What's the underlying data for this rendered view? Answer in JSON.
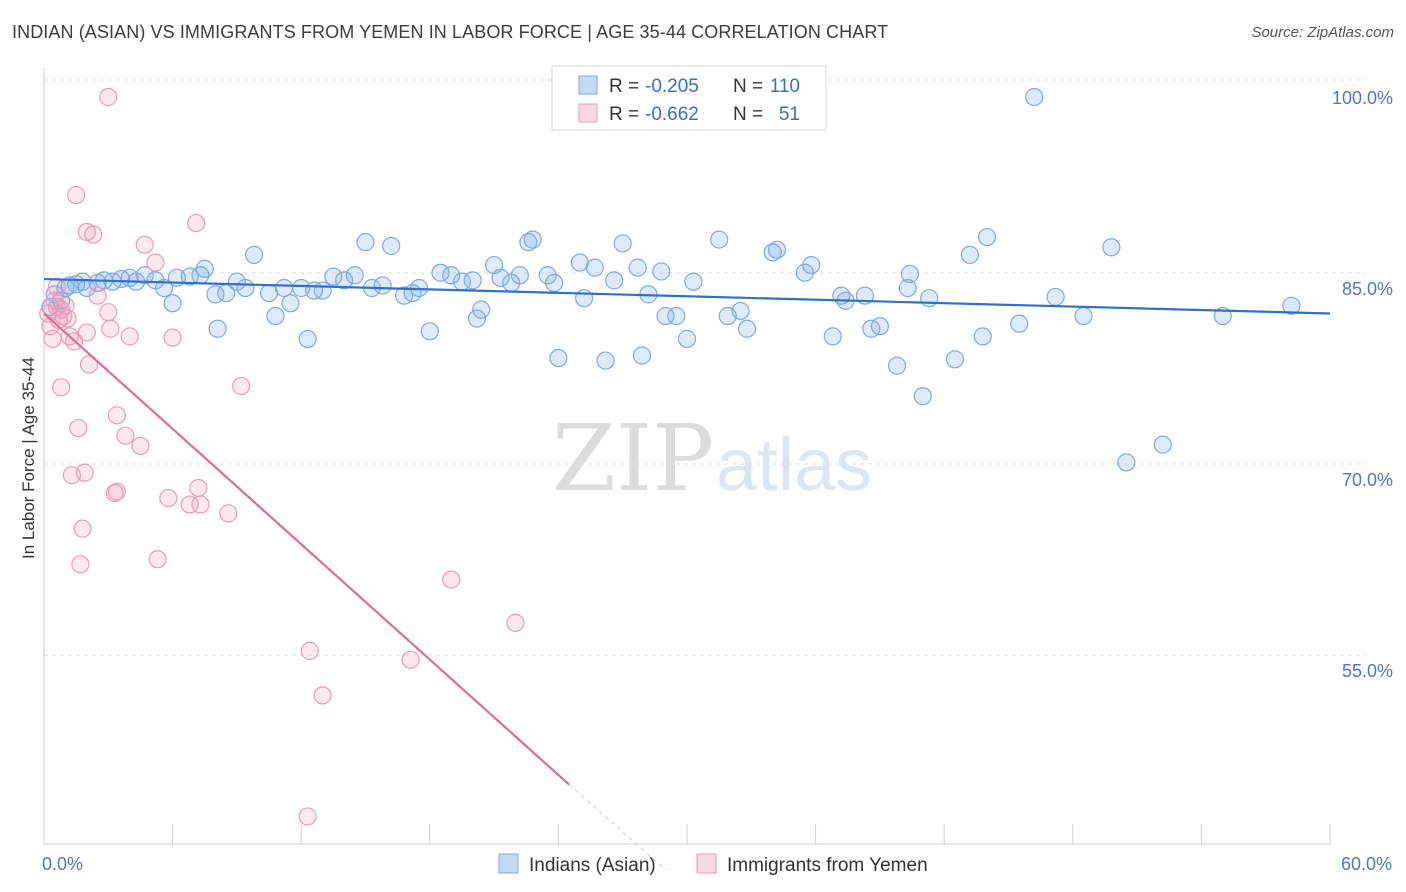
{
  "title": "INDIAN (ASIAN) VS IMMIGRANTS FROM YEMEN IN LABOR FORCE | AGE 35-44 CORRELATION CHART",
  "source": "Source: ZipAtlas.com",
  "watermark": {
    "zip": "ZIP",
    "atlas": "atlas"
  },
  "legend": {
    "r_label": "R =",
    "n_label": "N =",
    "rows": [
      {
        "r": "-0.205",
        "n": "110"
      },
      {
        "r": "-0.662",
        "n": "51"
      }
    ]
  },
  "chart_data": {
    "type": "scatter",
    "xlabel": "",
    "ylabel": "In Labor Force | Age 35-44",
    "xlim": [
      0,
      60
    ],
    "ylim": [
      40,
      101
    ],
    "x_tick_labels": {
      "left": "0.0%",
      "right": "60.0%"
    },
    "y_ticks": [
      {
        "value": 100,
        "label": "100.0%"
      },
      {
        "value": 85,
        "label": "85.0%"
      },
      {
        "value": 70,
        "label": "70.0%"
      },
      {
        "value": 55,
        "label": "55.0%"
      }
    ],
    "grid": "horizontal dashed",
    "series": [
      {
        "name": "Indians (Asian)",
        "color": "#7aaae6",
        "fill": "rgba(122,170,230,0.25)",
        "trend": {
          "x": [
            0,
            60
          ],
          "y": [
            85.7,
            83.0
          ],
          "color": "#2f6fd0"
        },
        "points": [
          [
            0.3,
            83.5
          ],
          [
            0.5,
            84.5
          ],
          [
            0.8,
            84.0
          ],
          [
            1.0,
            85.0
          ],
          [
            1.2,
            85.2
          ],
          [
            1.5,
            85.3
          ],
          [
            1.8,
            85.5
          ],
          [
            2.0,
            85.0
          ],
          [
            2.5,
            85.4
          ],
          [
            2.8,
            85.6
          ],
          [
            3.2,
            85.5
          ],
          [
            3.6,
            85.7
          ],
          [
            4.0,
            85.8
          ],
          [
            4.3,
            85.5
          ],
          [
            4.7,
            86.0
          ],
          [
            5.2,
            85.6
          ],
          [
            5.6,
            85.0
          ],
          [
            6.0,
            83.8
          ],
          [
            6.2,
            85.8
          ],
          [
            6.8,
            85.9
          ],
          [
            7.3,
            86.0
          ],
          [
            7.5,
            86.5
          ],
          [
            8.0,
            84.5
          ],
          [
            8.1,
            81.8
          ],
          [
            8.5,
            84.6
          ],
          [
            9.0,
            85.5
          ],
          [
            9.4,
            85.0
          ],
          [
            9.8,
            87.6
          ],
          [
            10.5,
            84.6
          ],
          [
            10.8,
            82.8
          ],
          [
            11.2,
            85.0
          ],
          [
            11.5,
            83.8
          ],
          [
            12.0,
            85.0
          ],
          [
            12.3,
            81.0
          ],
          [
            12.6,
            84.8
          ],
          [
            13.0,
            84.8
          ],
          [
            13.5,
            85.9
          ],
          [
            14.0,
            85.6
          ],
          [
            14.5,
            86.0
          ],
          [
            15.0,
            88.6
          ],
          [
            15.3,
            85.0
          ],
          [
            15.8,
            85.2
          ],
          [
            16.2,
            88.3
          ],
          [
            16.8,
            84.4
          ],
          [
            17.2,
            84.6
          ],
          [
            17.5,
            85.0
          ],
          [
            18.0,
            81.6
          ],
          [
            18.5,
            86.2
          ],
          [
            19.0,
            86.0
          ],
          [
            19.5,
            85.5
          ],
          [
            20.0,
            85.6
          ],
          [
            20.4,
            83.3
          ],
          [
            20.2,
            82.6
          ],
          [
            21.0,
            86.8
          ],
          [
            21.3,
            85.8
          ],
          [
            21.8,
            85.4
          ],
          [
            22.2,
            86.0
          ],
          [
            22.6,
            88.6
          ],
          [
            22.8,
            88.8
          ],
          [
            23.5,
            86.0
          ],
          [
            23.8,
            85.4
          ],
          [
            24.0,
            79.5
          ],
          [
            25.0,
            87.0
          ],
          [
            25.2,
            84.2
          ],
          [
            25.7,
            86.6
          ],
          [
            26.2,
            79.3
          ],
          [
            26.6,
            85.6
          ],
          [
            27.0,
            88.5
          ],
          [
            27.7,
            86.6
          ],
          [
            27.9,
            79.7
          ],
          [
            28.2,
            84.5
          ],
          [
            28.8,
            86.3
          ],
          [
            29.0,
            82.8
          ],
          [
            29.5,
            82.8
          ],
          [
            30.0,
            81.0
          ],
          [
            30.3,
            85.5
          ],
          [
            31.5,
            88.8
          ],
          [
            31.9,
            82.8
          ],
          [
            32.5,
            83.2
          ],
          [
            32.8,
            81.8
          ],
          [
            34.0,
            87.8
          ],
          [
            34.2,
            88.0
          ],
          [
            35.5,
            86.2
          ],
          [
            35.8,
            86.8
          ],
          [
            36.8,
            81.2
          ],
          [
            37.2,
            84.4
          ],
          [
            37.4,
            84.0
          ],
          [
            38.3,
            84.4
          ],
          [
            38.6,
            81.8
          ],
          [
            39.0,
            82.0
          ],
          [
            39.8,
            78.9
          ],
          [
            40.3,
            85.0
          ],
          [
            40.4,
            86.1
          ],
          [
            41.3,
            84.2
          ],
          [
            42.5,
            79.4
          ],
          [
            43.2,
            87.6
          ],
          [
            43.8,
            81.2
          ],
          [
            44.0,
            89.0
          ],
          [
            45.5,
            82.2
          ],
          [
            46.2,
            100.0
          ],
          [
            47.2,
            84.3
          ],
          [
            48.5,
            82.8
          ],
          [
            49.8,
            88.2
          ],
          [
            50.5,
            71.3
          ],
          [
            52.2,
            72.7
          ],
          [
            55.0,
            82.8
          ],
          [
            58.2,
            83.6
          ],
          [
            41.0,
            76.5
          ]
        ]
      },
      {
        "name": "Immigrants from Yemen",
        "color": "#ec9ab7",
        "fill": "rgba(236,154,183,0.22)",
        "trend": {
          "x": [
            0,
            24.5
          ],
          "y": [
            83.0,
            46.0
          ],
          "color": "#e06a98",
          "extended_x": 29,
          "extended_y": 39.3
        },
        "points": [
          [
            0.2,
            83.0
          ],
          [
            0.3,
            82.0
          ],
          [
            0.4,
            81.0
          ],
          [
            0.5,
            84.0
          ],
          [
            0.6,
            83.5
          ],
          [
            0.7,
            82.5
          ],
          [
            0.8,
            83.3
          ],
          [
            0.9,
            82.8
          ],
          [
            1.0,
            83.6
          ],
          [
            1.1,
            82.6
          ],
          [
            1.2,
            81.2
          ],
          [
            0.8,
            77.2
          ],
          [
            1.3,
            70.3
          ],
          [
            1.4,
            80.8
          ],
          [
            1.5,
            92.3
          ],
          [
            1.6,
            74.0
          ],
          [
            1.7,
            63.3
          ],
          [
            1.8,
            66.1
          ],
          [
            1.9,
            70.5
          ],
          [
            2.0,
            81.5
          ],
          [
            2.0,
            89.4
          ],
          [
            2.1,
            79.0
          ],
          [
            2.3,
            89.2
          ],
          [
            2.5,
            84.4
          ],
          [
            3.0,
            100.0
          ],
          [
            3.0,
            83.1
          ],
          [
            3.1,
            81.8
          ],
          [
            3.4,
            69.0
          ],
          [
            3.3,
            68.9
          ],
          [
            3.4,
            75.0
          ],
          [
            3.8,
            73.4
          ],
          [
            4.0,
            81.2
          ],
          [
            4.5,
            72.6
          ],
          [
            4.7,
            88.4
          ],
          [
            5.2,
            87.0
          ],
          [
            5.3,
            63.7
          ],
          [
            5.8,
            68.5
          ],
          [
            6.0,
            81.1
          ],
          [
            6.8,
            68.0
          ],
          [
            7.1,
            90.1
          ],
          [
            7.2,
            69.3
          ],
          [
            7.3,
            68.0
          ],
          [
            8.6,
            67.3
          ],
          [
            9.2,
            77.3
          ],
          [
            12.3,
            43.5
          ],
          [
            12.4,
            56.5
          ],
          [
            13.0,
            53.0
          ],
          [
            17.1,
            55.8
          ],
          [
            19.0,
            62.1
          ],
          [
            22.0,
            58.7
          ],
          [
            0.6,
            85.1
          ]
        ]
      }
    ]
  },
  "bottom_legend": [
    "Indians (Asian)",
    "Immigrants from Yemen"
  ]
}
